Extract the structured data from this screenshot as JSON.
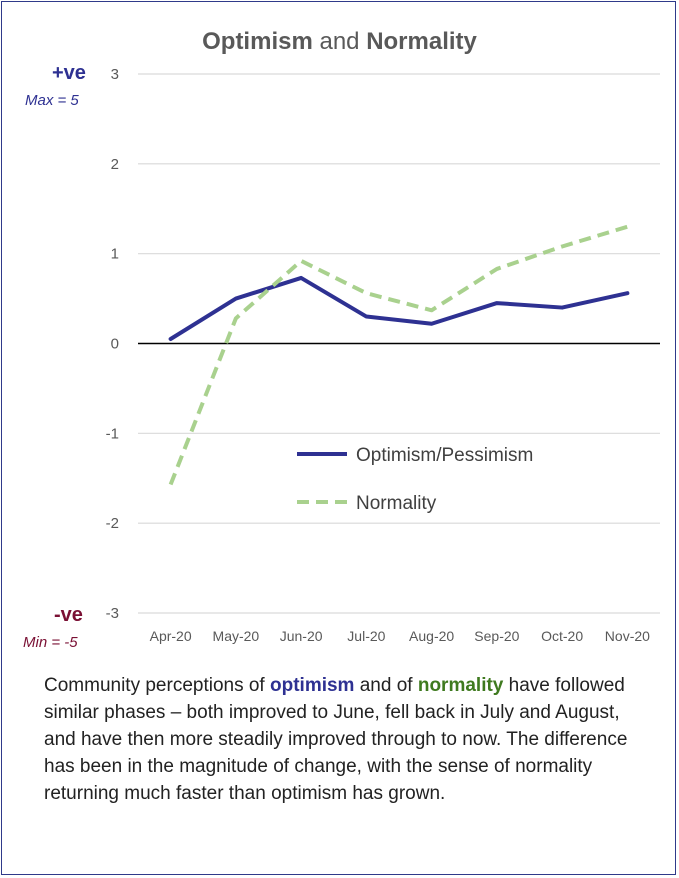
{
  "title": {
    "part1": "Optimism",
    "and": " and ",
    "part2": "Normality"
  },
  "scale_labels": {
    "positive": "+ve",
    "positive_sub": "Max = 5",
    "negative": "-ve",
    "negative_sub": "Min = -5"
  },
  "colors": {
    "optimism": "#2e3192",
    "normality": "#a9d18e",
    "grid": "#d9d9d9",
    "zero_line": "#000000"
  },
  "chart_data": {
    "type": "line",
    "title": "Optimism and Normality",
    "categories": [
      "Apr-20",
      "May-20",
      "Jun-20",
      "Jul-20",
      "Aug-20",
      "Sep-20",
      "Oct-20",
      "Nov-20"
    ],
    "ylim": [
      -3,
      3
    ],
    "yticks": [
      3,
      2,
      1,
      0,
      -1,
      -2,
      -3
    ],
    "grid": true,
    "legend_position": "center-right",
    "series": [
      {
        "name": "Optimism/Pessimism",
        "style": "solid",
        "values": [
          0.05,
          0.5,
          0.73,
          0.3,
          0.22,
          0.45,
          0.4,
          0.56
        ]
      },
      {
        "name": "Normality",
        "style": "dashed",
        "values": [
          -1.57,
          0.28,
          0.92,
          0.56,
          0.37,
          0.83,
          1.08,
          1.3
        ]
      }
    ]
  },
  "caption": {
    "p1": "Community perceptions of ",
    "optimism": "optimism",
    "p2": " and of ",
    "normality": "normality",
    "p3": " have followed similar phases – both improved to June, fell back in July and August, and have then more steadily improved through to now.  The difference has been in the magnitude of change, with the sense of normality returning much faster than optimism has grown."
  }
}
